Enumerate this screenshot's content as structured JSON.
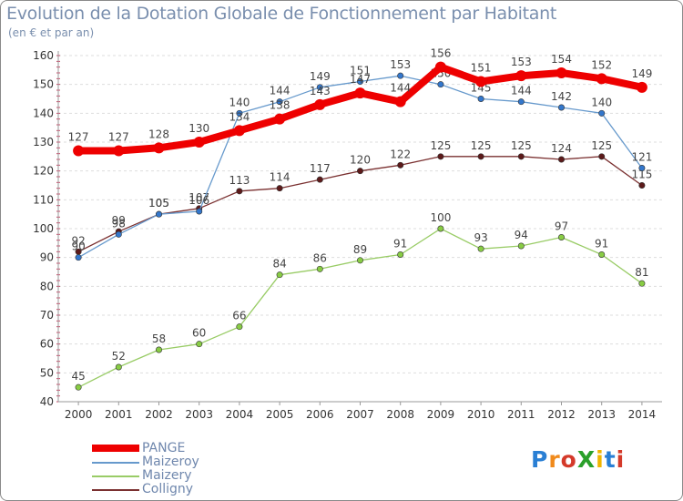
{
  "chart_data": {
    "type": "line",
    "title": "Evolution de la Dotation Globale de Fonctionnement par Habitant",
    "subtitle": "(en € et par an)",
    "categories": [
      "2000",
      "2001",
      "2002",
      "2003",
      "2004",
      "2005",
      "2006",
      "2007",
      "2008",
      "2009",
      "2010",
      "2011",
      "2012",
      "2013",
      "2014"
    ],
    "ylim": [
      40,
      160
    ],
    "yticks": [
      40,
      50,
      60,
      70,
      80,
      90,
      100,
      110,
      120,
      130,
      140,
      150,
      160
    ],
    "grid": true,
    "series": [
      {
        "name": "Maizery",
        "color": "#99cc66",
        "marker": "#88cc44",
        "width": 1.3,
        "values": [
          45,
          52,
          58,
          60,
          66,
          84,
          86,
          89,
          91,
          100,
          93,
          94,
          97,
          91,
          81
        ]
      },
      {
        "name": "Colligny",
        "color": "#7a3030",
        "marker": "#5c1a1a",
        "width": 1.3,
        "values": [
          92,
          99,
          105,
          107,
          113,
          114,
          117,
          120,
          122,
          125,
          125,
          125,
          124,
          125,
          115
        ]
      },
      {
        "name": "Maizeroy",
        "color": "#6699cc",
        "marker": "#3377cc",
        "width": 1.3,
        "values": [
          90,
          98,
          105,
          106,
          140,
          144,
          149,
          151,
          153,
          150,
          145,
          144,
          142,
          140,
          121
        ]
      },
      {
        "name": "PANGE",
        "color": "#ee0000",
        "marker": "#ee0000",
        "width": 8,
        "values": [
          127,
          127,
          128,
          130,
          134,
          138,
          143,
          147,
          144,
          156,
          151,
          153,
          154,
          152,
          149
        ]
      }
    ],
    "label_texts": {
      "Maizery": [
        "45",
        "52",
        "58",
        "60",
        "66",
        "84",
        "86",
        "89",
        "91",
        "100",
        "93",
        "94",
        "97",
        "91",
        "81"
      ],
      "Colligny": [
        "92",
        "99",
        "105",
        "107",
        "113",
        "114",
        "117",
        "120",
        "122",
        "125",
        "125",
        "125",
        "124",
        "125",
        "115"
      ],
      "Maizeroy": [
        "90",
        "98",
        "105",
        "106",
        "140",
        "144",
        "149",
        "151",
        "153",
        "150",
        "145",
        "144",
        "142",
        "140",
        "121"
      ],
      "PANGE": [
        "127",
        "127",
        "128",
        "130",
        "134",
        "138",
        "143",
        "147",
        "144",
        "156",
        "151",
        "153",
        "154",
        "152",
        "149"
      ]
    },
    "legend": [
      "PANGE",
      "Maizeroy",
      "Maizery",
      "Colligny"
    ]
  },
  "logo": {
    "text": "ProXiti",
    "letters": [
      "P",
      "r",
      "o",
      "X",
      "i",
      "t",
      "i"
    ],
    "colors": [
      "#2a7fd4",
      "#f08a1c",
      "#d43a2a",
      "#2aa02a",
      "#f0b400",
      "#2a7fd4",
      "#d43a2a"
    ]
  }
}
